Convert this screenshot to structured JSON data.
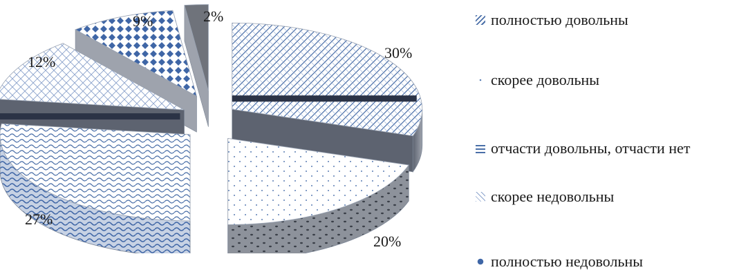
{
  "chart_data": {
    "type": "pie",
    "style": "3d-exploded",
    "legend_position": "right",
    "categories": [
      "полностью довольны",
      "скорее довольны",
      "отчасти довольны, отчасти нет",
      "скорее недовольны",
      "полностью недовольны",
      ""
    ],
    "values": [
      30,
      20,
      27,
      12,
      9,
      2
    ],
    "data_labels": [
      "30%",
      "20%",
      "27%",
      "12%",
      "9%",
      "2%"
    ],
    "colors": {
      "pattern": "#4a6fa8",
      "outline": "#7c8696",
      "band_dark": "#2b3346",
      "band_mid": "#6d7c97",
      "side_gray": "#8d929b",
      "slice_small": "#6f737b"
    }
  },
  "legend": {
    "items": [
      {
        "label": "полностью довольны",
        "icon": "diagonal-hatch-swatch"
      },
      {
        "label": "скорее довольны",
        "icon": "dotted-swatch"
      },
      {
        "label": "отчасти довольны, отчасти нет",
        "icon": "wave-swatch"
      },
      {
        "label": "скорее недовольны",
        "icon": "grid-swatch"
      },
      {
        "label": "полностью недовольны",
        "icon": "diamond-swatch"
      }
    ]
  }
}
